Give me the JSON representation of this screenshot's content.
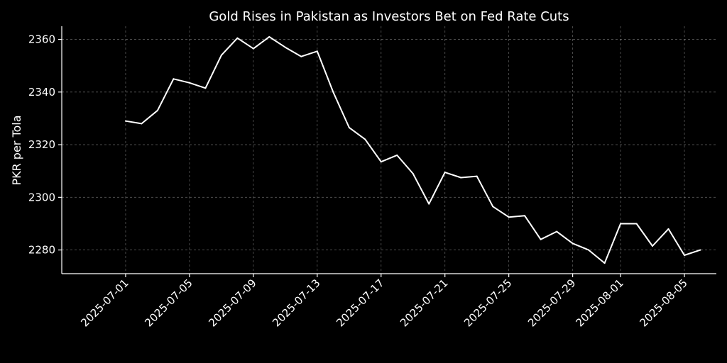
{
  "chart_data": {
    "type": "line",
    "title": "Gold Rises in Pakistan as Investors Bet on Fed Rate Cuts",
    "xlabel": "",
    "ylabel": "PKR per Tola",
    "ylim": [
      2271,
      2365
    ],
    "xlim": [
      "2025-06-27",
      "2025-08-07"
    ],
    "grid": true,
    "colors": {
      "background": "#000000",
      "line": "#ffffff",
      "text": "#ffffff"
    },
    "y_ticks": [
      2280,
      2300,
      2320,
      2340,
      2360
    ],
    "x_ticks": [
      "2025-07-01",
      "2025-07-05",
      "2025-07-09",
      "2025-07-13",
      "2025-07-17",
      "2025-07-21",
      "2025-07-25",
      "2025-07-29",
      "2025-08-01",
      "2025-08-05"
    ],
    "series": [
      {
        "x": [
          "2025-07-01",
          "2025-07-02",
          "2025-07-03",
          "2025-07-04",
          "2025-07-05",
          "2025-07-06",
          "2025-07-07",
          "2025-07-08",
          "2025-07-09",
          "2025-07-10",
          "2025-07-11",
          "2025-07-12",
          "2025-07-13",
          "2025-07-14",
          "2025-07-15",
          "2025-07-16",
          "2025-07-17",
          "2025-07-18",
          "2025-07-19",
          "2025-07-20",
          "2025-07-21",
          "2025-07-22",
          "2025-07-23",
          "2025-07-24",
          "2025-07-25",
          "2025-07-26",
          "2025-07-27",
          "2025-07-28",
          "2025-07-29",
          "2025-07-30",
          "2025-07-31",
          "2025-08-01",
          "2025-08-02",
          "2025-08-03",
          "2025-08-04",
          "2025-08-05",
          "2025-08-06"
        ],
        "values": [
          2329,
          2328,
          2333,
          2345,
          2343.5,
          2341.5,
          2354,
          2360.5,
          2356.5,
          2361,
          2357,
          2353.5,
          2355.5,
          2340,
          2326.5,
          2322,
          2313.5,
          2316,
          2309,
          2297.5,
          2309.5,
          2307.5,
          2308,
          2296.5,
          2292.5,
          2293,
          2284,
          2287,
          2282.5,
          2280,
          2275,
          2290,
          2290,
          2281.5,
          2288,
          2278,
          2280
        ]
      }
    ]
  }
}
